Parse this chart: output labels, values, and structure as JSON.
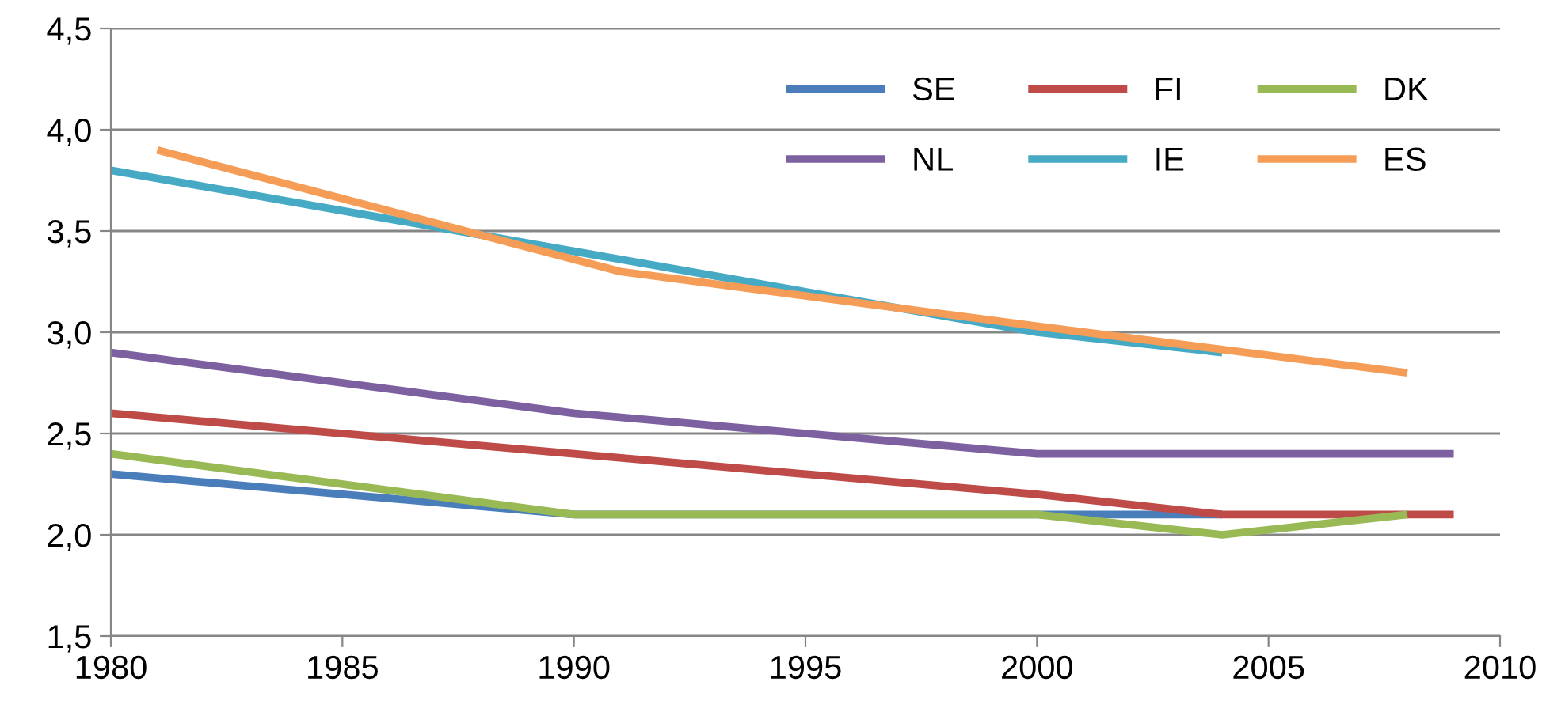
{
  "chart_data": {
    "type": "line",
    "series": [
      {
        "name": "SE",
        "color": "#4a7ebb",
        "x": [
          1980,
          1990,
          2000,
          2004
        ],
        "values": [
          2.3,
          2.1,
          2.1,
          2.1
        ]
      },
      {
        "name": "FI",
        "color": "#be4b48",
        "x": [
          1980,
          1990,
          2000,
          2004,
          2009
        ],
        "values": [
          2.6,
          2.4,
          2.2,
          2.1,
          2.1
        ]
      },
      {
        "name": "DK",
        "color": "#98b954",
        "x": [
          1980,
          1990,
          2000,
          2004,
          2008
        ],
        "values": [
          2.4,
          2.1,
          2.1,
          2.0,
          2.1
        ]
      },
      {
        "name": "NL",
        "color": "#7d60a0",
        "x": [
          1980,
          1990,
          2000,
          2009
        ],
        "values": [
          2.9,
          2.6,
          2.4,
          2.4
        ]
      },
      {
        "name": "IE",
        "color": "#46aac5",
        "x": [
          1980,
          1990,
          2000,
          2004
        ],
        "values": [
          3.8,
          3.4,
          3.0,
          2.9
        ]
      },
      {
        "name": "ES",
        "color": "#f59d56",
        "x": [
          1981,
          1991,
          2000,
          2008
        ],
        "values": [
          3.9,
          3.3,
          3.03,
          2.8
        ]
      }
    ],
    "xlim": [
      1980,
      2010
    ],
    "xticks": [
      1980,
      1985,
      1990,
      1995,
      2000,
      2005,
      2010
    ],
    "ylim": [
      1.5,
      4.5
    ],
    "yticks": [
      {
        "value": 1.5,
        "label": "1,5"
      },
      {
        "value": 2.0,
        "label": "2,0"
      },
      {
        "value": 2.5,
        "label": "2,5"
      },
      {
        "value": 3.0,
        "label": "3,0"
      },
      {
        "value": 3.5,
        "label": "3,5"
      },
      {
        "value": 4.0,
        "label": "4,0"
      },
      {
        "value": 4.5,
        "label": "4,5"
      }
    ],
    "grid": "y",
    "legend": "top right",
    "marker": "none",
    "line_style": "solid"
  }
}
